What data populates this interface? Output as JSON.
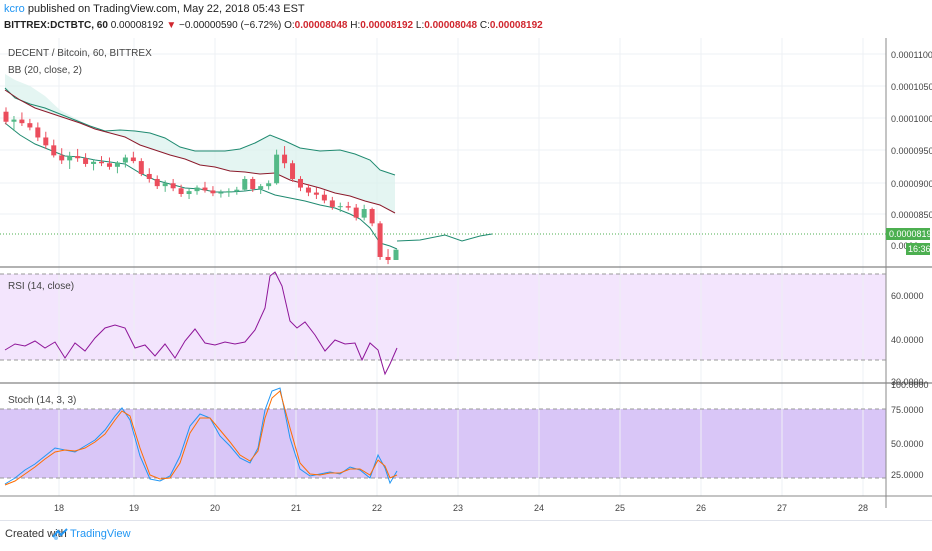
{
  "header": {
    "author": "kcro",
    "published_text": "published on TradingView.com, May 22, 2018 05:43 EST"
  },
  "symbol_bar": {
    "symbol": "BITTREX:DCTBTC, 60",
    "last": "0.00008192",
    "down_arrow": "▼",
    "change": "−0.00000590 (−6.72%)",
    "o_label": "O:",
    "o_value": "0.00008048",
    "h_label": "H:",
    "h_value": "0.00008192",
    "l_label": "L:",
    "l_value": "0.00008048",
    "c_label": "C:",
    "c_value": "0.00008192"
  },
  "main_pane": {
    "title": "DECENT / Bitcoin, 60, BITTREX",
    "indicator": "BB (20, close, 2)",
    "price_axis": [
      "0.00011000",
      "0.00010500",
      "0.00010000",
      "0.00009500",
      "0.00009000",
      "0.00008500",
      "0.0000"
    ],
    "last_price_label": "0.00008192",
    "countdown_label": "16:36"
  },
  "rsi_pane": {
    "title": "RSI (14, close)",
    "axis": [
      "60.0000",
      "40.0000",
      "30.0000"
    ]
  },
  "stoch_pane": {
    "title": "Stoch (14, 3, 3)",
    "axis": [
      "100.0000",
      "75.0000",
      "50.0000",
      "25.0000"
    ]
  },
  "time_axis": [
    "18",
    "19",
    "20",
    "21",
    "22",
    "23",
    "24",
    "25",
    "26",
    "27",
    "28"
  ],
  "footer": {
    "created_with": "Created with",
    "brand": "TradingView"
  },
  "colors": {
    "up": "#53b987",
    "down": "#eb4d5c",
    "bb_band": "#1f8a70",
    "bb_basis": "#8b1a2b",
    "rsi_line": "#8e1599",
    "rsi_fill": "#f3e5fd",
    "stoch_k": "#2196f3",
    "stoch_d": "#ff6d00",
    "stoch_fill": "#d9c6f7",
    "last_price_bg": "#4caf50",
    "link": "#2196f3"
  },
  "chart_data": {
    "type": "candlestick",
    "price_range": [
      7.95e-05,
      0.0001115
    ],
    "candles_ohlc": [
      [
        0.0001012,
        0.0001018,
        9.94e-05,
        9.98e-05
      ],
      [
        9.98e-05,
        0.0001006,
        9.85e-05,
        0.0001001
      ],
      [
        0.0001001,
        0.0001011,
        9.92e-05,
        9.96e-05
      ],
      [
        9.96e-05,
        0.0001002,
        9.86e-05,
        9.9e-05
      ],
      [
        9.9e-05,
        9.97e-05,
        9.71e-05,
        9.76e-05
      ],
      [
        9.76e-05,
        9.84e-05,
        9.6e-05,
        9.65e-05
      ],
      [
        9.65e-05,
        9.73e-05,
        9.48e-05,
        9.51e-05
      ],
      [
        9.51e-05,
        9.61e-05,
        9.39e-05,
        9.44e-05
      ],
      [
        9.44e-05,
        9.56e-05,
        9.32e-05,
        9.5e-05
      ],
      [
        9.5e-05,
        9.6e-05,
        9.42e-05,
        9.47e-05
      ],
      [
        9.47e-05,
        9.54e-05,
        9.35e-05,
        9.39e-05
      ],
      [
        9.39e-05,
        9.45e-05,
        9.3e-05,
        9.42e-05
      ],
      [
        9.42e-05,
        9.5e-05,
        9.36e-05,
        9.4e-05
      ],
      [
        9.4e-05,
        9.48e-05,
        9.31e-05,
        9.35e-05
      ],
      [
        9.35e-05,
        9.43e-05,
        9.26e-05,
        9.41e-05
      ],
      [
        9.41e-05,
        9.52e-05,
        9.34e-05,
        9.48e-05
      ],
      [
        9.48e-05,
        9.56e-05,
        9.4e-05,
        9.43e-05
      ],
      [
        9.43e-05,
        9.47e-05,
        9.22e-05,
        9.25e-05
      ],
      [
        9.25e-05,
        9.33e-05,
        9.13e-05,
        9.18e-05
      ],
      [
        9.18e-05,
        9.23e-05,
        9.04e-05,
        9.08e-05
      ],
      [
        9.08e-05,
        9.16e-05,
        9e-05,
        9.12e-05
      ],
      [
        9.12e-05,
        9.18e-05,
        9.01e-05,
        9.05e-05
      ],
      [
        9.05e-05,
        9.1e-05,
        8.93e-05,
        8.97e-05
      ],
      [
        8.97e-05,
        9.04e-05,
        8.9e-05,
        9.01e-05
      ],
      [
        9.01e-05,
        9.09e-05,
        8.96e-05,
        9.06e-05
      ],
      [
        9.06e-05,
        9.14e-05,
        8.99e-05,
        9.02e-05
      ],
      [
        9.02e-05,
        9.08e-05,
        8.94e-05,
        8.98e-05
      ],
      [
        8.98e-05,
        9.03e-05,
        8.92e-05,
        8.99e-05
      ],
      [
        8.99e-05,
        9.05e-05,
        8.93e-05,
        9.01e-05
      ],
      [
        9.01e-05,
        9.07e-05,
        8.96e-05,
        9.03e-05
      ],
      [
        9.03e-05,
        9.22e-05,
        9.01e-05,
        9.18e-05
      ],
      [
        9.18e-05,
        9.21e-05,
        9e-05,
        9.04e-05
      ],
      [
        9.04e-05,
        9.11e-05,
        8.97e-05,
        9.08e-05
      ],
      [
        9.08e-05,
        9.16e-05,
        9.03e-05,
        9.12e-05
      ],
      [
        9.12e-05,
        9.59e-05,
        9.1e-05,
        9.52e-05
      ],
      [
        9.52e-05,
        9.64e-05,
        9.33e-05,
        9.4e-05
      ],
      [
        9.4e-05,
        9.44e-05,
        9.14e-05,
        9.18e-05
      ],
      [
        9.18e-05,
        9.22e-05,
        9.01e-05,
        9.06e-05
      ],
      [
        9.06e-05,
        9.11e-05,
        8.94e-05,
        8.99e-05
      ],
      [
        8.99e-05,
        9.06e-05,
        8.9e-05,
        8.96e-05
      ],
      [
        8.96e-05,
        9.02e-05,
        8.84e-05,
        8.88e-05
      ],
      [
        8.88e-05,
        8.93e-05,
        8.75e-05,
        8.79e-05
      ],
      [
        8.79e-05,
        8.85e-05,
        8.72e-05,
        8.8e-05
      ],
      [
        8.8e-05,
        8.86e-05,
        8.74e-05,
        8.78e-05
      ],
      [
        8.78e-05,
        8.83e-05,
        8.6e-05,
        8.64e-05
      ],
      [
        8.64e-05,
        8.82e-05,
        8.6e-05,
        8.76e-05
      ],
      [
        8.76e-05,
        8.78e-05,
        8.52e-05,
        8.56e-05
      ],
      [
        8.56e-05,
        8.59e-05,
        8.05e-05,
        8.09e-05
      ],
      [
        8.09e-05,
        8.2e-05,
        7.99e-05,
        8.048e-05
      ],
      [
        8.048e-05,
        8.192e-05,
        8.048e-05,
        8.192e-05
      ]
    ],
    "time_labels": [
      "18",
      "19",
      "20",
      "21",
      "22",
      "23",
      "24",
      "25",
      "26",
      "27",
      "28"
    ]
  }
}
